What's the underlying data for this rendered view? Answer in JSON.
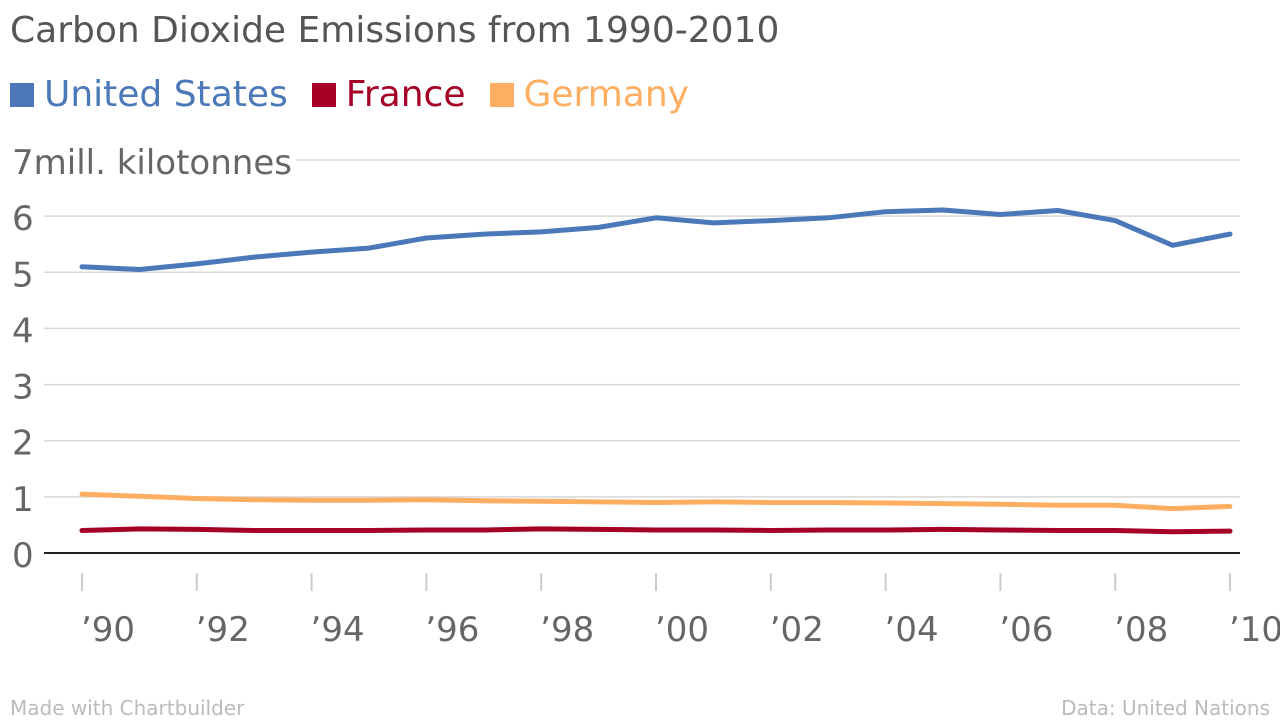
{
  "chart_data": {
    "type": "line",
    "title": "Carbon Dioxide Emissions from 1990-2010",
    "ylabel_unit": "mill. kilotonnes",
    "x": [
      1990,
      1991,
      1992,
      1993,
      1994,
      1995,
      1996,
      1997,
      1998,
      1999,
      2000,
      2001,
      2002,
      2003,
      2004,
      2005,
      2006,
      2007,
      2008,
      2009,
      2010
    ],
    "x_tick_values": [
      1990,
      1992,
      1994,
      1996,
      1998,
      2000,
      2002,
      2004,
      2006,
      2008,
      2010
    ],
    "x_tick_labels": [
      "’90",
      "’92",
      "’94",
      "’96",
      "’98",
      "’00",
      "’02",
      "’04",
      "’06",
      "’08",
      "’10"
    ],
    "y_ticks": [
      0,
      1,
      2,
      3,
      4,
      5,
      6,
      7
    ],
    "y_tick_labels": [
      "0",
      "1",
      "2",
      "3",
      "4",
      "5",
      "6",
      "7"
    ],
    "ylim": [
      0,
      7
    ],
    "xlim": [
      1990,
      2010
    ],
    "grid": true,
    "legend_position": "top-left",
    "series": [
      {
        "name": "United States",
        "color": "#4a78b9",
        "values": [
          5.1,
          5.05,
          5.15,
          5.27,
          5.36,
          5.43,
          5.61,
          5.68,
          5.72,
          5.8,
          5.97,
          5.88,
          5.92,
          5.97,
          6.08,
          6.11,
          6.03,
          6.1,
          5.92,
          5.48,
          5.68
        ]
      },
      {
        "name": "France",
        "color": "#a50026",
        "values": [
          0.4,
          0.43,
          0.42,
          0.4,
          0.4,
          0.4,
          0.41,
          0.41,
          0.43,
          0.42,
          0.41,
          0.41,
          0.4,
          0.41,
          0.41,
          0.42,
          0.41,
          0.4,
          0.4,
          0.38,
          0.39
        ]
      },
      {
        "name": "Germany",
        "color": "#fdae61",
        "values": [
          1.05,
          1.01,
          0.97,
          0.95,
          0.94,
          0.94,
          0.95,
          0.93,
          0.92,
          0.91,
          0.9,
          0.91,
          0.9,
          0.9,
          0.89,
          0.88,
          0.87,
          0.85,
          0.85,
          0.79,
          0.83
        ]
      }
    ]
  },
  "footer": {
    "left": "Made with Chartbuilder",
    "right": "Data: United Nations"
  }
}
